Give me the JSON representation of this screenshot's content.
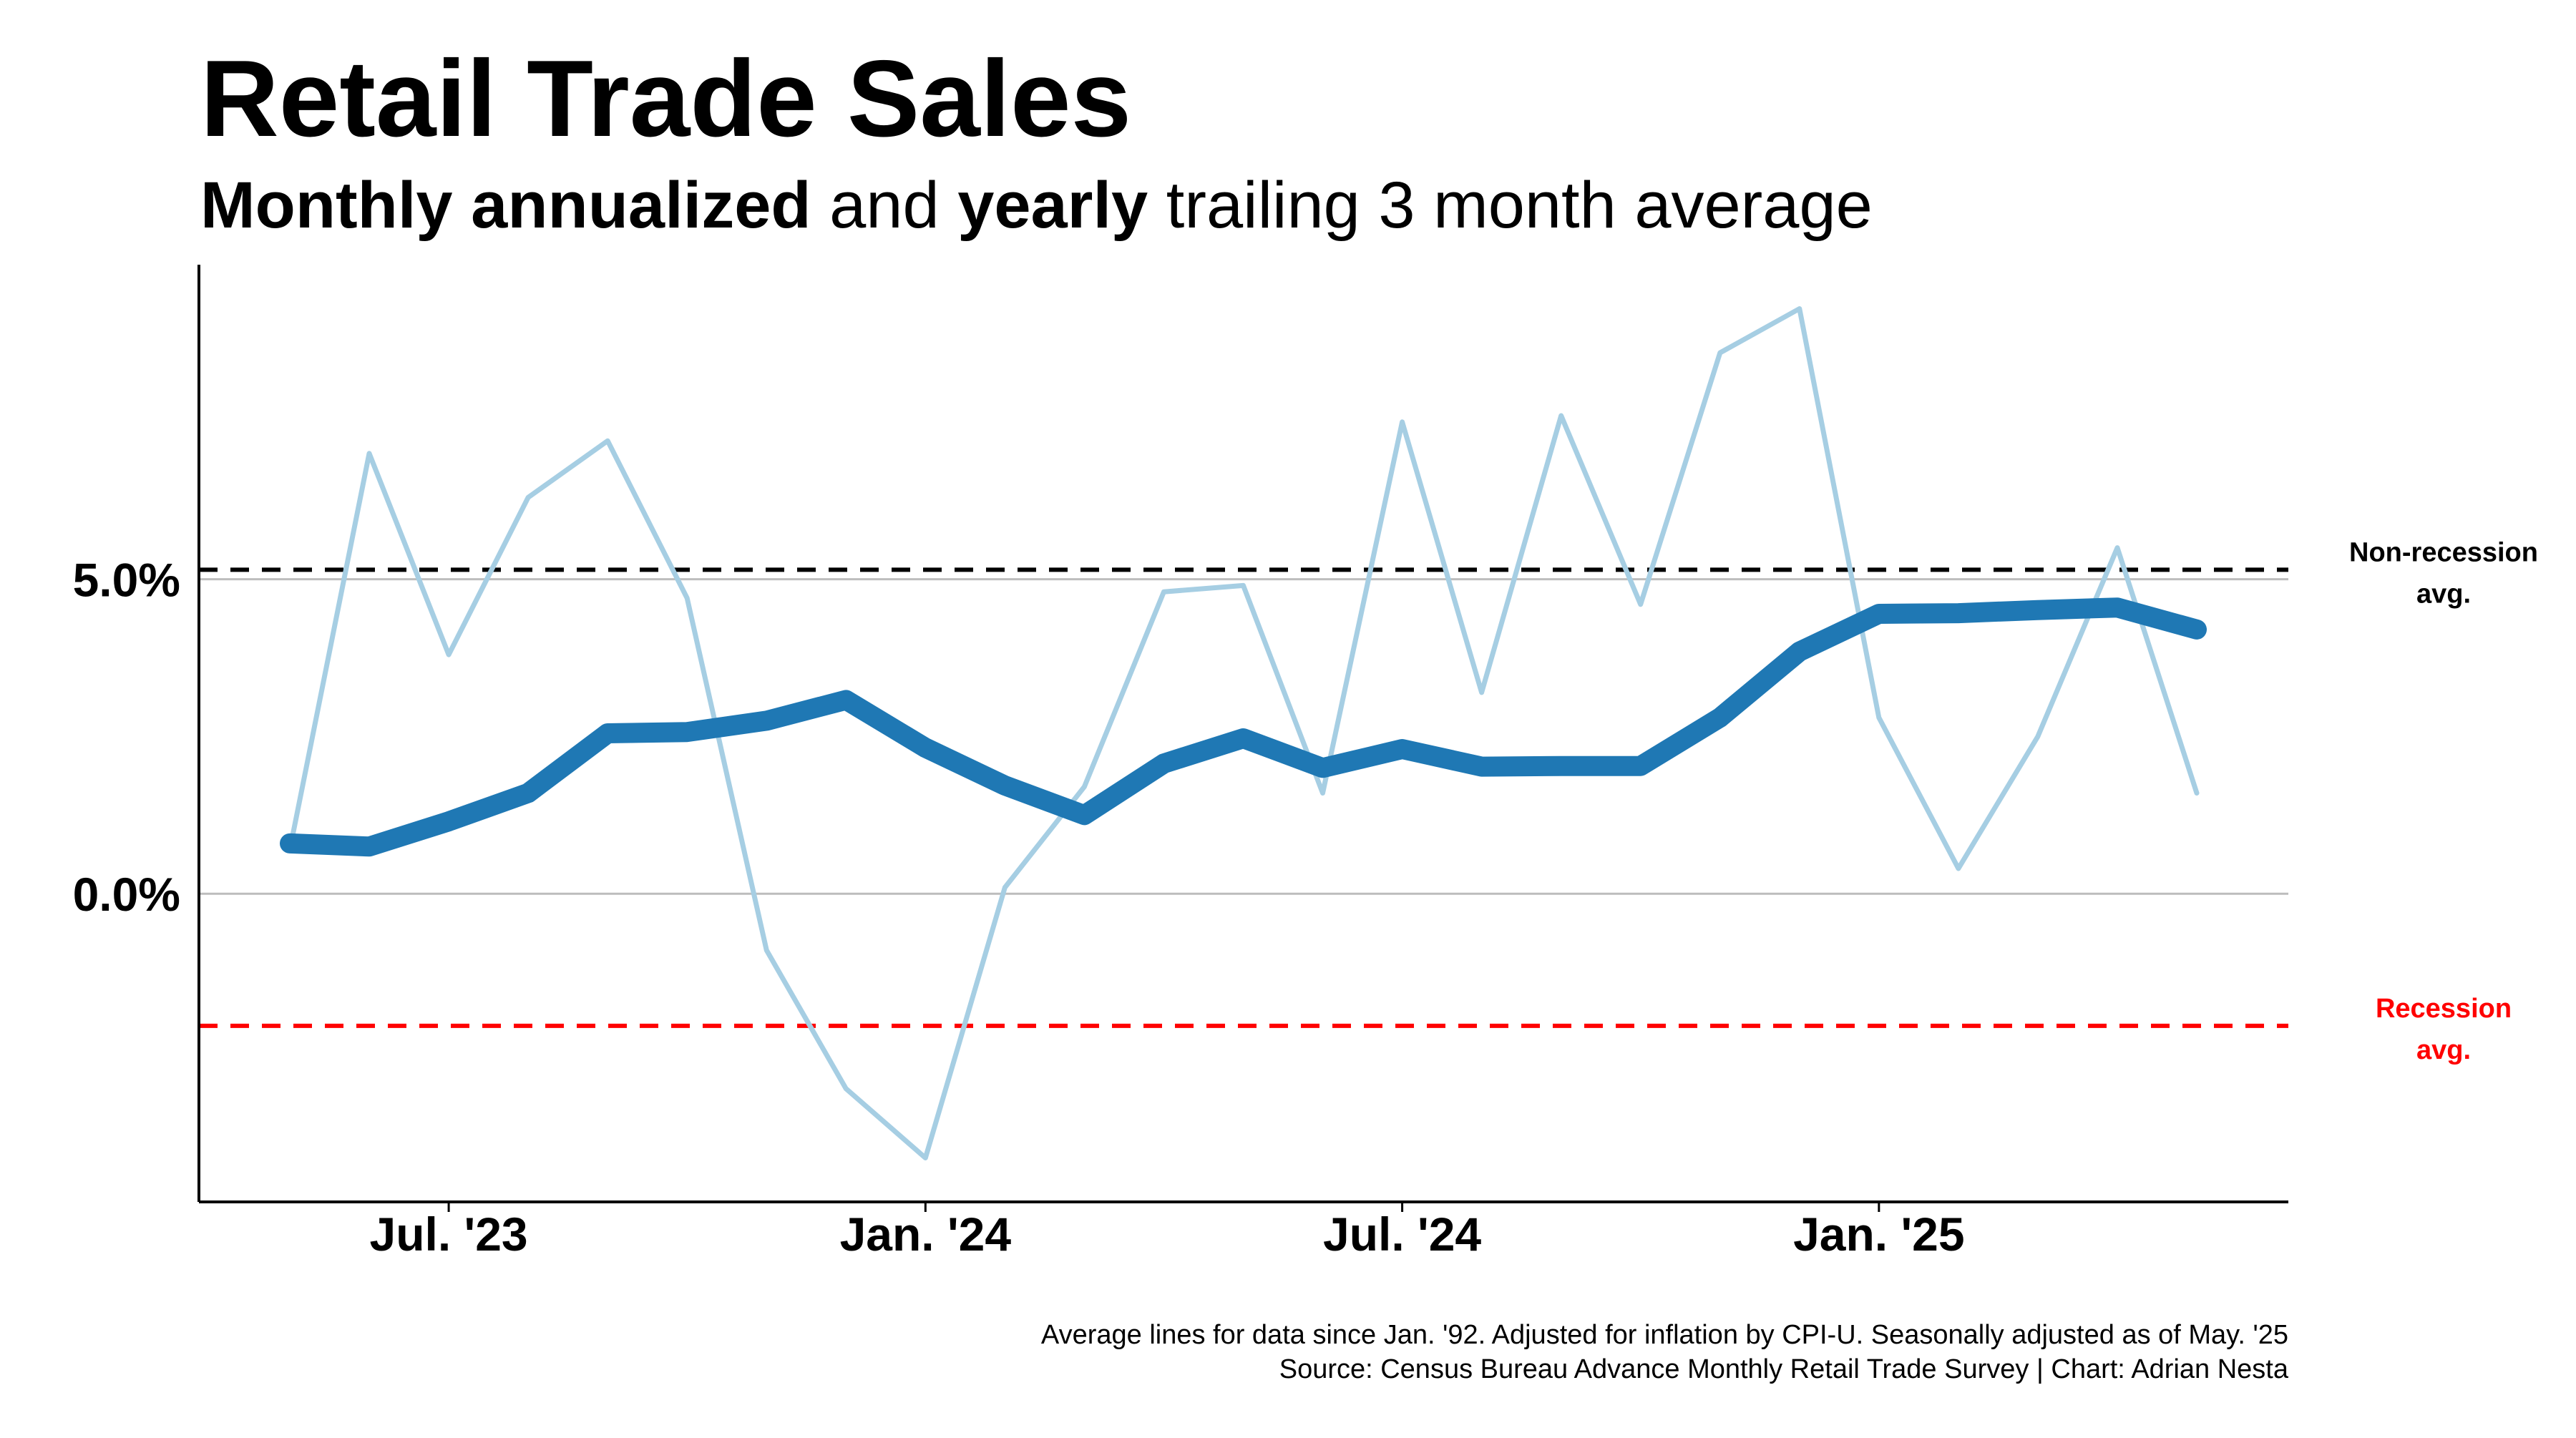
{
  "colors": {
    "monthly": "#a6cee3",
    "yearly": "#1f78b4",
    "non_recession": "#000000",
    "recession": "#ff0000",
    "grid": "#bdbdbd"
  },
  "chart_data": {
    "type": "line",
    "title": "Retail Trade Sales",
    "subtitle": {
      "part1": "Monthly annualized",
      "part2": " and ",
      "part3": "yearly",
      "part4": " trailing 3 month average"
    },
    "xlabel": "",
    "ylabel": "",
    "x": [
      "2023-05",
      "2023-06",
      "2023-07",
      "2023-08",
      "2023-09",
      "2023-10",
      "2023-11",
      "2023-12",
      "2024-01",
      "2024-02",
      "2024-03",
      "2024-04",
      "2024-05",
      "2024-06",
      "2024-07",
      "2024-08",
      "2024-09",
      "2024-10",
      "2024-11",
      "2024-12",
      "2025-01",
      "2025-02",
      "2025-03",
      "2025-04",
      "2025-05"
    ],
    "x_ticks": [
      {
        "x": "2023-07",
        "label": "Jul. '23"
      },
      {
        "x": "2024-01",
        "label": "Jan. '24"
      },
      {
        "x": "2024-07",
        "label": "Jul. '24"
      },
      {
        "x": "2025-01",
        "label": "Jan. '25"
      }
    ],
    "y_ticks": [
      {
        "value": 0,
        "label": "0.0%"
      },
      {
        "value": 5,
        "label": "5.0%"
      }
    ],
    "ylim": [
      -4.9,
      10.0
    ],
    "grid": "horizontal at y ticks",
    "series": [
      {
        "key": "monthly",
        "values": [
          0.7,
          7.0,
          3.8,
          6.3,
          7.2,
          4.7,
          -0.9,
          -3.1,
          -4.2,
          0.1,
          1.7,
          4.8,
          4.9,
          1.6,
          7.5,
          3.2,
          7.6,
          4.6,
          8.6,
          9.3,
          2.8,
          0.4,
          2.5,
          5.5,
          1.6
        ]
      },
      {
        "key": "yearly",
        "values": [
          0.8,
          0.75,
          1.15,
          1.6,
          2.55,
          2.57,
          2.75,
          3.08,
          2.32,
          1.72,
          1.25,
          2.07,
          2.47,
          2.0,
          2.3,
          2.02,
          2.03,
          2.03,
          2.8,
          3.85,
          4.45,
          4.46,
          4.51,
          4.55,
          4.2
        ]
      }
    ],
    "reference_lines": [
      {
        "key": "non_recession",
        "value": 5.15,
        "label_line1": "Non-recession",
        "label_line2": "avg."
      },
      {
        "key": "recession",
        "value": -2.1,
        "label_line1": "Recession",
        "label_line2": "avg."
      }
    ],
    "footnote": {
      "line1": "Average lines for data since Jan. '92. Adjusted for inflation by CPI-U. Seasonally adjusted as of May. '25",
      "line2": "Source: Census Bureau Advance Monthly Retail Trade Survey | Chart: Adrian Nesta"
    }
  }
}
